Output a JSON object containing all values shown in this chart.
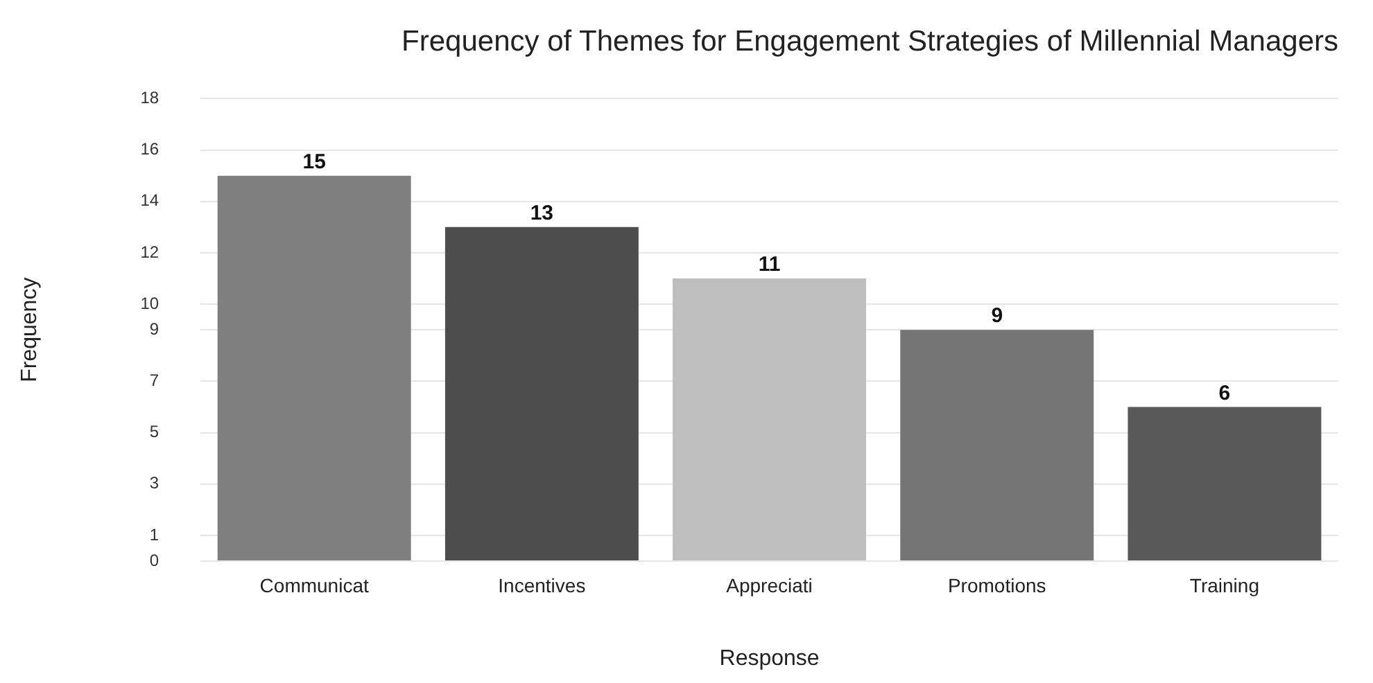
{
  "chart_data": {
    "type": "bar",
    "title": "Frequency of Themes for Engagement Strategies of Millennial Managers",
    "xlabel": "Response",
    "ylabel": "Frequency",
    "categories": [
      "Communicat",
      "Incentives",
      "Appreciati",
      "Promotions",
      "Training"
    ],
    "values": [
      15,
      13,
      11,
      9,
      6
    ],
    "colors": [
      "#7f7f7f",
      "#4d4d4d",
      "#bebebe",
      "#757575",
      "#595959"
    ],
    "ylim": [
      0,
      18
    ],
    "yticks": [
      0,
      1,
      3,
      5,
      7,
      9,
      10,
      12,
      14,
      16,
      18
    ],
    "grid": "y",
    "data_labels": true,
    "legend": false
  }
}
